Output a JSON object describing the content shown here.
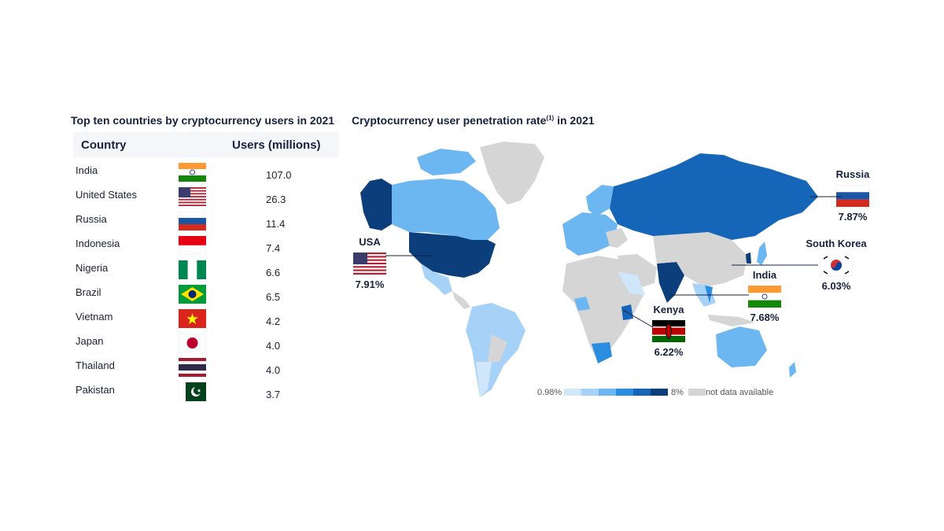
{
  "left_title": "Top ten countries by cryptocurrency users in 2021",
  "right_title_main": "Cryptocurrency user penetration rate",
  "right_title_sup": "(1)",
  "right_title_tail": " in 2021",
  "table": {
    "header_country": "Country",
    "header_users": "Users (millions)",
    "rows": [
      {
        "country": "India",
        "users": "107.0",
        "flag": "india"
      },
      {
        "country": "United States",
        "users": "26.3",
        "flag": "usa"
      },
      {
        "country": "Russia",
        "users": "11.4",
        "flag": "russia"
      },
      {
        "country": "Indonesia",
        "users": "7.4",
        "flag": "indonesia"
      },
      {
        "country": "Nigeria",
        "users": "6.6",
        "flag": "nigeria"
      },
      {
        "country": "Brazil",
        "users": "6.5",
        "flag": "brazil"
      },
      {
        "country": "Vietnam",
        "users": "4.2",
        "flag": "vietnam"
      },
      {
        "country": "Japan",
        "users": "4.0",
        "flag": "japan"
      },
      {
        "country": "Thailand",
        "users": "4.0",
        "flag": "thailand"
      },
      {
        "country": "Pakistan",
        "users": "3.7",
        "flag": "pakistan"
      }
    ]
  },
  "callouts": {
    "russia": {
      "name": "Russia",
      "pct": "7.87%"
    },
    "usa": {
      "name": "USA",
      "pct": "7.91%"
    },
    "south_korea": {
      "name": "South Korea",
      "pct": "6.03%"
    },
    "india": {
      "name": "India",
      "pct": "7.68%"
    },
    "kenya": {
      "name": "Kenya",
      "pct": "6.22%"
    }
  },
  "legend": {
    "min_label": "0.98%",
    "max_label": "8%",
    "na_label": "not data available",
    "colors": [
      "#cfe6fb",
      "#a6d2f7",
      "#6cb6f2",
      "#2a8de0",
      "#1566b8",
      "#0b3e7a"
    ],
    "na_color": "#d5d5d5"
  },
  "colors": {
    "title": "#16213d",
    "header_bg": "#f4f6fa",
    "land_na": "#d5d5d5"
  }
}
